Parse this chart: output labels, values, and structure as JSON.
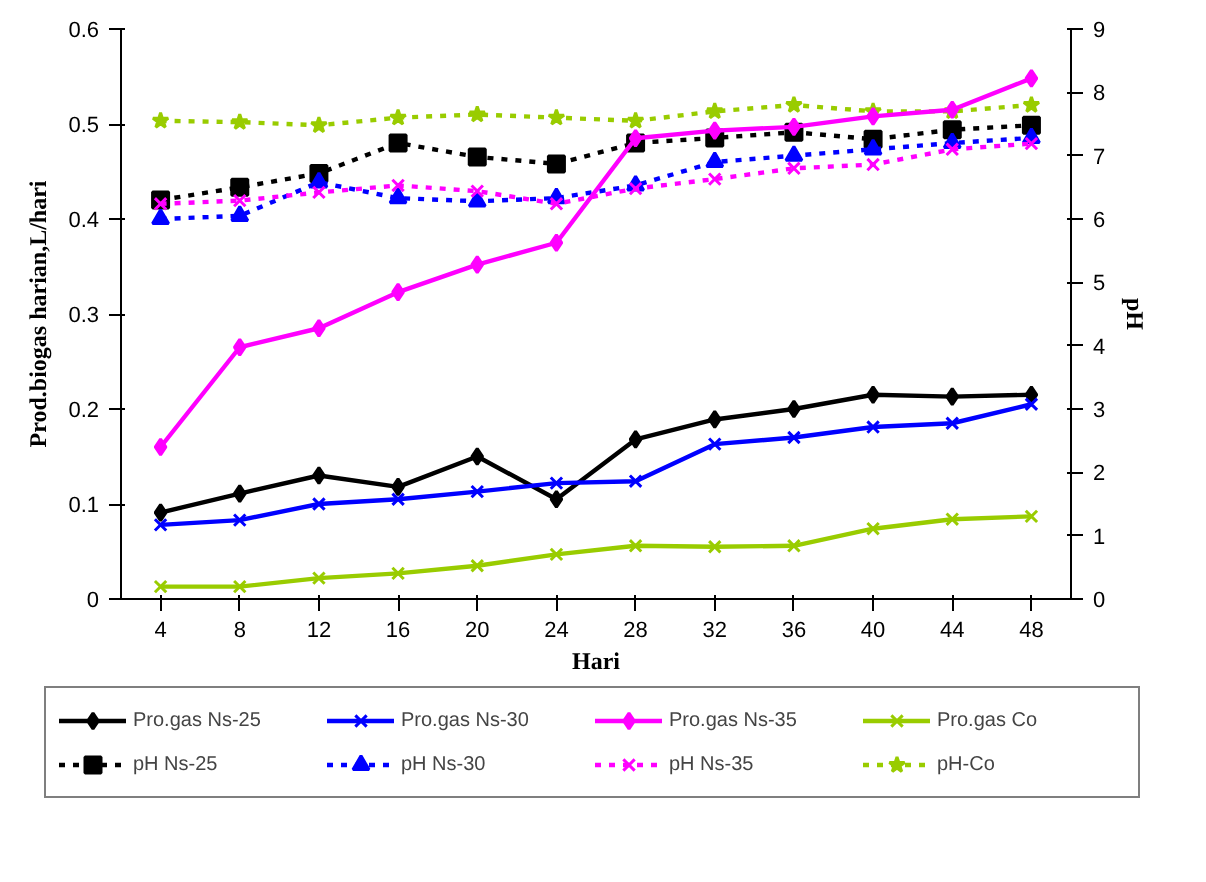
{
  "chart_data": {
    "type": "line",
    "xlabel": "Hari",
    "ylabel": "Prod.biogas harian,L/hari",
    "y2label": "pH",
    "x": [
      4,
      8,
      12,
      16,
      20,
      24,
      28,
      32,
      36,
      40,
      44,
      48
    ],
    "xlim": [
      2,
      50
    ],
    "xticks": [
      4,
      8,
      12,
      16,
      20,
      24,
      28,
      32,
      36,
      40,
      44,
      48
    ],
    "ylim": [
      0,
      0.6
    ],
    "yticks": [
      0,
      0.1,
      0.2,
      0.3,
      0.4,
      0.5,
      0.6
    ],
    "y2lim": [
      0,
      9
    ],
    "y2ticks": [
      0,
      1,
      2,
      3,
      4,
      5,
      6,
      7,
      8,
      9
    ],
    "grid": false,
    "legend": "bottom",
    "series": [
      {
        "name": "Pro.gas Ns-25",
        "color": "#000000",
        "marker": "diamond",
        "line_style": "solid",
        "values": [
          0.091,
          0.111,
          0.13,
          0.118,
          0.15,
          0.105,
          0.168,
          0.189,
          0.2,
          0.215,
          0.213,
          0.215
        ]
      },
      {
        "name": "Pro.gas Ns-30",
        "color": "#0000ff",
        "marker": "cross",
        "line_style": "solid",
        "values": [
          0.078,
          0.083,
          0.1,
          0.105,
          0.113,
          0.122,
          0.124,
          0.163,
          0.17,
          0.181,
          0.185,
          0.205
        ]
      },
      {
        "name": "Pro.gas Ns-35",
        "color": "#ff00ff",
        "marker": "diamond",
        "line_style": "solid",
        "values": [
          0.16,
          0.265,
          0.285,
          0.323,
          0.352,
          0.375,
          0.485,
          0.493,
          0.497,
          0.508,
          0.515,
          0.548
        ]
      },
      {
        "name": "Pro.gas Co",
        "color": "#99cc00",
        "marker": "cross",
        "line_style": "solid",
        "values": [
          0.013,
          0.013,
          0.022,
          0.027,
          0.035,
          0.047,
          0.056,
          0.055,
          0.056,
          0.074,
          0.084,
          0.087
        ]
      },
      {
        "name": "pH Ns-25",
        "color": "#000000",
        "marker": "square",
        "line_style": "dotted",
        "axis": "y2",
        "values": [
          6.3,
          6.5,
          6.72,
          7.2,
          6.98,
          6.87,
          7.2,
          7.28,
          7.37,
          7.26,
          7.41,
          7.48
        ]
      },
      {
        "name": "pH Ns-30",
        "color": "#0000ff",
        "marker": "triangle",
        "line_style": "dotted",
        "axis": "y2",
        "values": [
          6.0,
          6.05,
          6.58,
          6.33,
          6.28,
          6.33,
          6.53,
          6.9,
          7.0,
          7.1,
          7.2,
          7.28
        ]
      },
      {
        "name": "pH Ns-35",
        "color": "#ff00ff",
        "marker": "cross",
        "line_style": "dotted",
        "axis": "y2",
        "values": [
          6.24,
          6.29,
          6.42,
          6.53,
          6.44,
          6.24,
          6.48,
          6.63,
          6.8,
          6.86,
          7.1,
          7.19
        ]
      },
      {
        "name": "pH-Co",
        "color": "#99cc00",
        "marker": "star",
        "line_style": "dotted",
        "axis": "y2",
        "values": [
          7.55,
          7.53,
          7.48,
          7.6,
          7.65,
          7.6,
          7.55,
          7.7,
          7.8,
          7.7,
          7.7,
          7.8
        ]
      }
    ]
  }
}
